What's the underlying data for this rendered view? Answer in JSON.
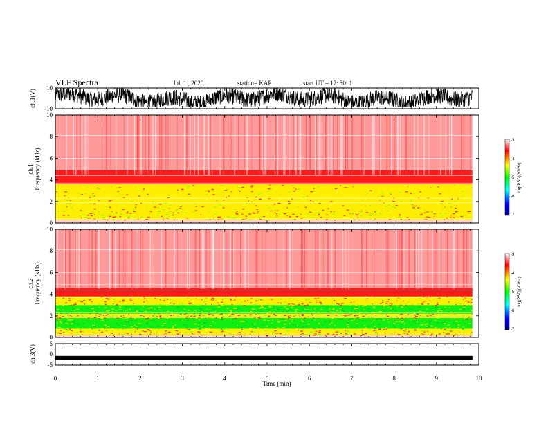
{
  "header": {
    "title": "VLF Spectra",
    "date": "Jul. 1 , 2020",
    "station": "station= KAP",
    "start": "start UT = 17: 30: 1"
  },
  "colors": {
    "axis": "#000000",
    "spectrogram_low": "#ff0000",
    "spectrogram_mid": "#ffff00",
    "spectrogram_high": "#00ff00",
    "colorbar": [
      "#000080",
      "#0000ff",
      "#00ffff",
      "#00ff00",
      "#ffff00",
      "#ff0000",
      "#ffffff"
    ]
  },
  "chart_data": [
    {
      "type": "line",
      "ylabel": "ch.1(V)",
      "ylim": [
        -10,
        10
      ],
      "yticks": [
        "10",
        "-10"
      ],
      "xlim": [
        0,
        10
      ],
      "x_unit": "min",
      "description_signal": "noisy waveform spanning roughly -8 to +10 V"
    },
    {
      "type": "heatmap",
      "ylabel_top": "ch.1",
      "ylabel": "Frequency (kHz)",
      "ylim": [
        0,
        10
      ],
      "yticks": [
        "0",
        "2",
        "4",
        "6",
        "8",
        "10"
      ],
      "xlim": [
        0,
        10
      ],
      "colorbar": {
        "label": "log(PSD)(V²/Hz)",
        "range": [
          -7,
          -3
        ],
        "ticks": [
          "-3",
          "-4",
          "-5",
          "-6",
          "-7"
        ]
      },
      "bands": [
        {
          "from_khz": 0.3,
          "to_khz": 1.2,
          "level": "mid"
        },
        {
          "from_khz": 1.2,
          "to_khz": 3.6,
          "level": "mid"
        },
        {
          "from_khz": 3.6,
          "to_khz": 4.9,
          "level": "low"
        },
        {
          "from_khz": 4.9,
          "to_khz": 10.0,
          "level": "faint"
        }
      ]
    },
    {
      "type": "heatmap",
      "ylabel_top": "ch.2",
      "ylabel": "Frequency (kHz)",
      "ylim": [
        0,
        10
      ],
      "yticks": [
        "0",
        "2",
        "4",
        "6",
        "8",
        "10"
      ],
      "xlim": [
        0,
        10
      ],
      "colorbar": {
        "label": "log(PSD)(V²/Hz)",
        "range": [
          -7,
          -3
        ],
        "ticks": [
          "-3",
          "-4",
          "-5",
          "-6",
          "-7"
        ]
      },
      "bands": [
        {
          "from_khz": 0.2,
          "to_khz": 0.8,
          "level": "mid"
        },
        {
          "from_khz": 0.8,
          "to_khz": 1.8,
          "level": "high"
        },
        {
          "from_khz": 1.8,
          "to_khz": 2.2,
          "level": "mid"
        },
        {
          "from_khz": 2.2,
          "to_khz": 3.0,
          "level": "high"
        },
        {
          "from_khz": 3.0,
          "to_khz": 3.8,
          "level": "mid"
        },
        {
          "from_khz": 3.8,
          "to_khz": 4.6,
          "level": "low"
        },
        {
          "from_khz": 4.6,
          "to_khz": 10.0,
          "level": "faint"
        }
      ]
    },
    {
      "type": "line",
      "ylabel": "ch.3(V)",
      "ylim": [
        -5,
        5
      ],
      "yticks": [
        "5",
        "0",
        "-5"
      ],
      "xlim": [
        0,
        10
      ],
      "xlabel": "Time (min)",
      "xticks": [
        "0",
        "1",
        "2",
        "3",
        "4",
        "5",
        "6",
        "7",
        "8",
        "9",
        "10"
      ],
      "signal_level_v": -1.7
    }
  ]
}
